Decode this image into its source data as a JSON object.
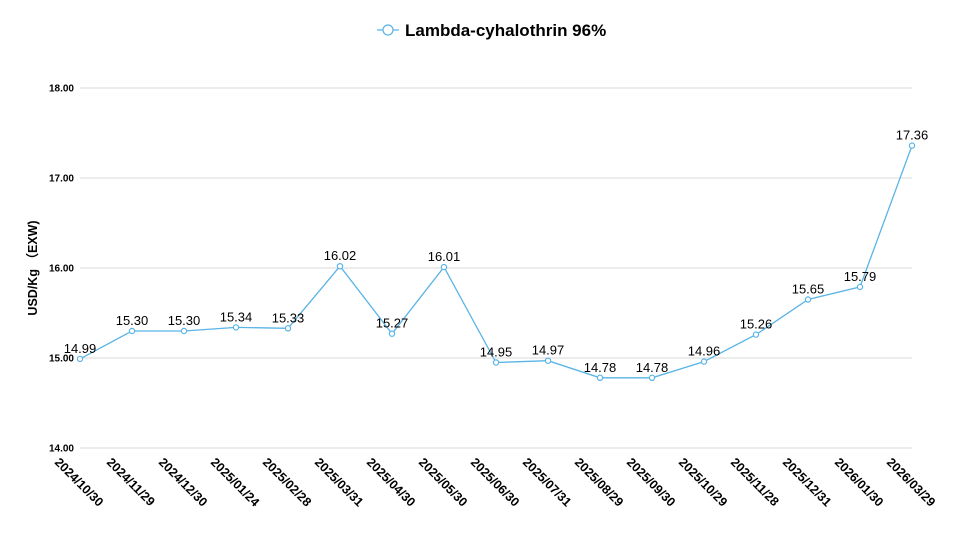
{
  "chart_data": {
    "type": "line",
    "ylabel": "USD/Kg （EXW)",
    "ylim": [
      14.0,
      18.0
    ],
    "yticks": [
      "14.00",
      "15.00",
      "16.00",
      "17.00",
      "18.00"
    ],
    "grid": true,
    "legend_position": "top-center",
    "categories": [
      "2024/10/30",
      "2024/11/29",
      "2024/12/30",
      "2025/01/24",
      "2025/02/28",
      "2025/03/31",
      "2025/04/30",
      "2025/05/30",
      "2025/06/30",
      "2025/07/31",
      "2025/08/29",
      "2025/09/30",
      "2025/10/29",
      "2025/11/28",
      "2025/12/31",
      "2026/01/30",
      "2026/03/29"
    ],
    "series": [
      {
        "name": "Lambda-cyhalothrin 96%",
        "color": "#5ab4e6",
        "values": [
          14.99,
          15.3,
          15.3,
          15.34,
          15.33,
          16.02,
          15.27,
          16.01,
          14.95,
          14.97,
          14.78,
          14.78,
          14.96,
          15.26,
          15.65,
          15.79,
          17.36
        ],
        "labels": [
          "14.99",
          "15.30",
          "15.30",
          "15.34",
          "15.33",
          "16.02",
          "15.27",
          "16.01",
          "14.95",
          "14.97",
          "14.78",
          "14.78",
          "14.96",
          "15.26",
          "15.65",
          "15.79",
          "17.36"
        ]
      }
    ]
  }
}
